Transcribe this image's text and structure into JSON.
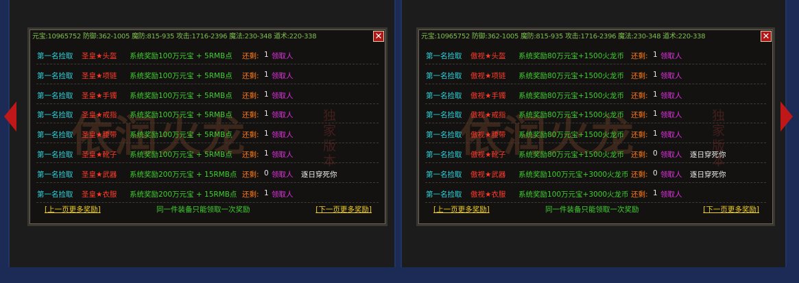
{
  "panels": [
    {
      "header": "元宝:10965752 防御:362-1005 魔防:815-935 攻击:1716-2396 魔法:230-348 道术:220-338",
      "rows": [
        {
          "rank": "第一名捡取",
          "item": "圣皇★头盔",
          "reward": "系统奖励100万元宝 + 5RMB点",
          "remain_label": "还剩:",
          "remain": 1,
          "claimer_label": "领取人"
        },
        {
          "rank": "第一名捡取",
          "item": "圣皇★项链",
          "reward": "系统奖励100万元宝 + 5RMB点",
          "remain_label": "还剩:",
          "remain": 1,
          "claimer_label": "领取人"
        },
        {
          "rank": "第一名捡取",
          "item": "圣皇★手镯",
          "reward": "系统奖励100万元宝 + 5RMB点",
          "remain_label": "还剩:",
          "remain": 1,
          "claimer_label": "领取人"
        },
        {
          "rank": "第一名捡取",
          "item": "圣皇★戒指",
          "reward": "系统奖励100万元宝 + 5RMB点",
          "remain_label": "还剩:",
          "remain": 1,
          "claimer_label": "领取人"
        },
        {
          "rank": "第一名捡取",
          "item": "圣皇★腰带",
          "reward": "系统奖励100万元宝 + 5RMB点",
          "remain_label": "还剩:",
          "remain": 1,
          "claimer_label": "领取人"
        },
        {
          "rank": "第一名捡取",
          "item": "圣皇★靴子",
          "reward": "系统奖励100万元宝 + 5RMB点",
          "remain_label": "还剩:",
          "remain": 1,
          "claimer_label": "领取人"
        },
        {
          "rank": "第一名捡取",
          "item": "圣皇★武器",
          "reward": "系统奖励200万元宝 + 15RMB点",
          "remain_label": "还剩:",
          "remain": 0,
          "claimer_label": "领取人",
          "claimer": "逐日穿死你"
        },
        {
          "rank": "第一名捡取",
          "item": "圣皇★衣服",
          "reward": "系统奖励200万元宝 + 15RMB点",
          "remain_label": "还剩:",
          "remain": 1,
          "claimer_label": "领取人"
        }
      ],
      "footer": {
        "prev": "[上一页更多奖励]",
        "note": "同一件装备只能领取一次奖励",
        "next": "[下一页更多奖励]"
      },
      "watermark": {
        "logo": "依润火龙",
        "badge": "独家版本"
      }
    },
    {
      "header": "元宝:10965752 防御:362-1005 魔防:815-935 攻击:1716-2396 魔法:230-348 道术:220-338",
      "rows": [
        {
          "rank": "第一名捡取",
          "item": "傲视★头盔",
          "reward": "系统奖励80万元宝+1500火龙币",
          "remain_label": "还剩:",
          "remain": 1,
          "claimer_label": "领取人"
        },
        {
          "rank": "第一名捡取",
          "item": "傲视★项链",
          "reward": "系统奖励80万元宝+1500火龙币",
          "remain_label": "还剩:",
          "remain": 1,
          "claimer_label": "领取人"
        },
        {
          "rank": "第一名捡取",
          "item": "傲视★手镯",
          "reward": "系统奖励80万元宝+1500火龙币",
          "remain_label": "还剩:",
          "remain": 1,
          "claimer_label": "领取人"
        },
        {
          "rank": "第一名捡取",
          "item": "傲视★戒指",
          "reward": "系统奖励80万元宝+1500火龙币",
          "remain_label": "还剩:",
          "remain": 1,
          "claimer_label": "领取人"
        },
        {
          "rank": "第一名捡取",
          "item": "傲视★腰带",
          "reward": "系统奖励80万元宝+1500火龙币",
          "remain_label": "还剩:",
          "remain": 1,
          "claimer_label": "领取人"
        },
        {
          "rank": "第一名捡取",
          "item": "傲视★靴子",
          "reward": "系统奖励80万元宝+1500火龙币",
          "remain_label": "还剩:",
          "remain": 0,
          "claimer_label": "领取人",
          "claimer": "逐日穿死你"
        },
        {
          "rank": "第一名捡取",
          "item": "傲视★武器",
          "reward": "系统奖励100万元宝+3000火龙币",
          "remain_label": "还剩:",
          "remain": 0,
          "claimer_label": "领取人",
          "claimer": "逐日穿死你"
        },
        {
          "rank": "第一名捡取",
          "item": "傲视★衣服",
          "reward": "系统奖励100万元宝+3000火龙币",
          "remain_label": "还剩:",
          "remain": 1,
          "claimer_label": "领取人"
        }
      ],
      "footer": {
        "prev": "[上一页更多奖励]",
        "note": "同一件装备只能领取一次奖励",
        "next": "[下一页更多奖励]"
      },
      "watermark": {
        "logo": "依润火龙",
        "badge": "独家版本"
      }
    }
  ]
}
